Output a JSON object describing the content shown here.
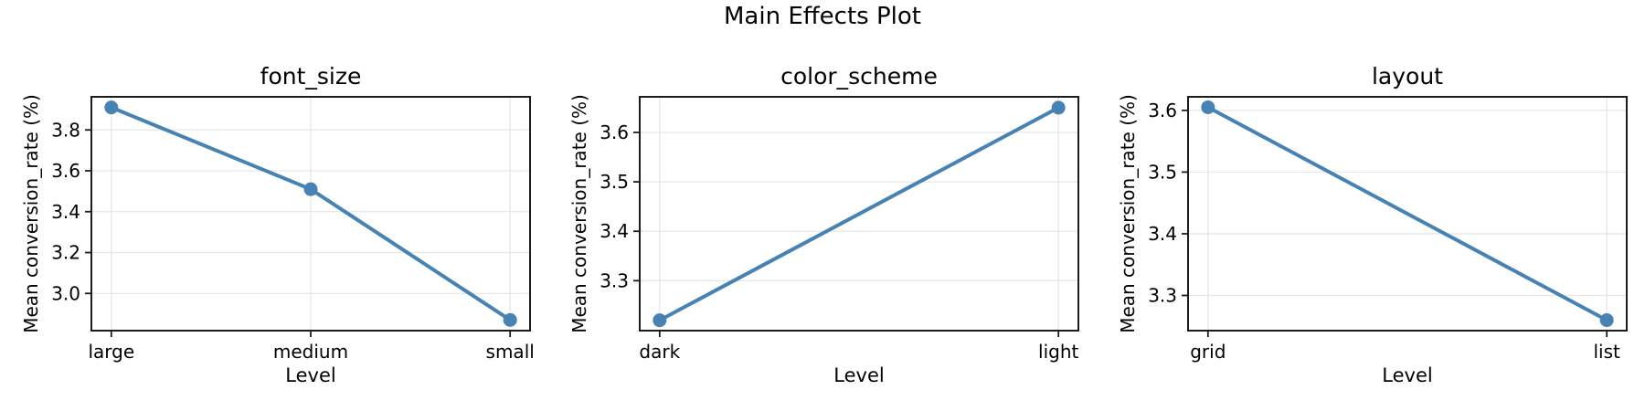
{
  "figure": {
    "title": "Main Effects Plot",
    "background": "#ffffff"
  },
  "style": {
    "line_color": "#4682B4",
    "marker_color": "#4682B4",
    "spine_color": "#1c1c1c",
    "grid_color": "#e7e7e7",
    "tick_color": "#1c1c1c",
    "text_color": "#000000"
  },
  "chart_data": [
    {
      "type": "line",
      "title": "font_size",
      "categories": [
        "large",
        "medium",
        "small"
      ],
      "values": [
        3.91,
        3.51,
        2.87
      ],
      "xlabel": "Level",
      "ylabel": "Mean conversion_rate (%)",
      "ylim": [
        2.818,
        3.962
      ],
      "yticks": [
        3.0,
        3.2,
        3.4,
        3.6,
        3.8
      ],
      "grid": true,
      "legend": "none"
    },
    {
      "type": "line",
      "title": "color_scheme",
      "categories": [
        "dark",
        "light"
      ],
      "values": [
        3.22,
        3.65
      ],
      "xlabel": "Level",
      "ylabel": "Mean conversion_rate (%)",
      "ylim": [
        3.199,
        3.672
      ],
      "yticks": [
        3.3,
        3.4,
        3.5,
        3.6
      ],
      "grid": true,
      "legend": "none"
    },
    {
      "type": "line",
      "title": "layout",
      "categories": [
        "grid",
        "list"
      ],
      "values": [
        3.605,
        3.26
      ],
      "xlabel": "Level",
      "ylabel": "Mean conversion_rate (%)",
      "ylim": [
        3.243,
        3.622
      ],
      "yticks": [
        3.3,
        3.4,
        3.5,
        3.6
      ],
      "grid": true,
      "legend": "none"
    }
  ]
}
